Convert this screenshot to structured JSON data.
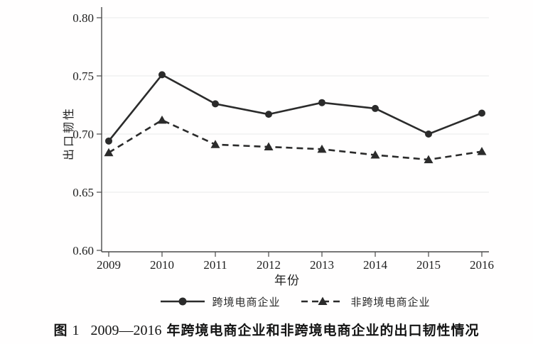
{
  "chart_data": {
    "type": "line",
    "title": "",
    "x": [
      2009,
      2010,
      2011,
      2012,
      2013,
      2014,
      2015,
      2016
    ],
    "series": [
      {
        "name": "跨境电商企业",
        "values": [
          0.694,
          0.751,
          0.726,
          0.717,
          0.727,
          0.722,
          0.7,
          0.718
        ],
        "line_style": "solid",
        "marker": "circle"
      },
      {
        "name": "非跨境电商企业",
        "values": [
          0.684,
          0.712,
          0.691,
          0.689,
          0.687,
          0.682,
          0.678,
          0.685
        ],
        "line_style": "dashed",
        "marker": "triangle"
      }
    ],
    "xlabel": "年份",
    "ylabel": "出口韧性",
    "ylim": [
      0.6,
      0.8
    ],
    "yticks": [
      0.6,
      0.65,
      0.7,
      0.75,
      0.8
    ],
    "ytick_format_decimals": 2,
    "grid": true,
    "legend_position": "bottom",
    "line_color": "#2b2b2b",
    "grid_color": "#e9e9e9",
    "axis_color": "#4a4a4a"
  },
  "caption": {
    "prefix": "图",
    "number": "1",
    "years": "2009—2016",
    "text": "年跨境电商企业和非跨境电商企业的出口韧性情况"
  }
}
